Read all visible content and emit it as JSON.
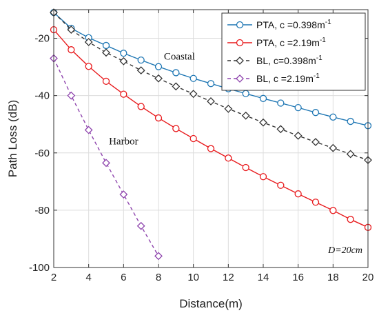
{
  "chart_data": {
    "type": "line",
    "xlabel": "Distance(m)",
    "ylabel": "Path Loss (dB)",
    "xlim": [
      2,
      20
    ],
    "ylim": [
      -100,
      -10
    ],
    "xticks": [
      2,
      4,
      6,
      8,
      10,
      12,
      14,
      16,
      18,
      20
    ],
    "yticks": [
      -100,
      -80,
      -60,
      -40,
      -20
    ],
    "grid": true,
    "legend_position": "top-right",
    "series": [
      {
        "name": "PTA, c =0.398m",
        "name_sup": "-1",
        "color": "#1f77b4",
        "line": "solid",
        "marker": "circle",
        "x": [
          2,
          3,
          4,
          5,
          6,
          7,
          8,
          9,
          10,
          11,
          12,
          13,
          14,
          15,
          16,
          17,
          18,
          19,
          20
        ],
        "values": [
          -11.0,
          -16.5,
          -19.8,
          -22.5,
          -25.2,
          -27.6,
          -29.9,
          -32.0,
          -34.0,
          -35.8,
          -37.6,
          -39.3,
          -41.0,
          -42.6,
          -44.2,
          -45.9,
          -47.5,
          -49.0,
          -50.5
        ]
      },
      {
        "name": "PTA, c =2.19m",
        "name_sup": "-1",
        "color": "#e8191c",
        "line": "solid",
        "marker": "circle",
        "x": [
          2,
          3,
          4,
          5,
          6,
          7,
          8,
          9,
          10,
          11,
          12,
          13,
          14,
          15,
          16,
          17,
          18,
          19,
          20
        ],
        "values": [
          -17.0,
          -24.0,
          -29.8,
          -35.0,
          -39.5,
          -43.8,
          -47.8,
          -51.5,
          -55.0,
          -58.5,
          -61.8,
          -65.1,
          -68.3,
          -71.3,
          -74.3,
          -77.2,
          -80.1,
          -83.2,
          -86.0
        ]
      },
      {
        "name": "BL, c=0.398m",
        "name_sup": "-1",
        "color": "#333333",
        "line": "dashed",
        "marker": "diamond",
        "x": [
          2,
          3,
          4,
          5,
          6,
          7,
          8,
          9,
          10,
          11,
          12,
          13,
          14,
          15,
          16,
          17,
          18,
          19,
          20
        ],
        "values": [
          -11.0,
          -17.0,
          -21.3,
          -25.0,
          -28.0,
          -31.2,
          -34.0,
          -36.8,
          -39.4,
          -42.0,
          -44.6,
          -47.0,
          -49.4,
          -51.7,
          -54.0,
          -56.2,
          -58.3,
          -60.4,
          -62.5
        ]
      },
      {
        "name": "BL, c =2.19m",
        "name_sup": "-1",
        "color": "#8e44ad",
        "line": "dashed",
        "marker": "diamond",
        "x": [
          2,
          3,
          4,
          5,
          6,
          7,
          8
        ],
        "values": [
          -27.0,
          -40.0,
          -52.0,
          -63.5,
          -74.5,
          -85.5,
          -96.0
        ]
      }
    ],
    "annotations": [
      {
        "text": "Coastal",
        "x": 9.2,
        "y": -27.5,
        "style": "serif"
      },
      {
        "text": "Harbor",
        "x": 6.0,
        "y": -57.0,
        "style": "serif"
      },
      {
        "text": "D=20cm",
        "x": 18.7,
        "y": -95.0,
        "style": "italic"
      }
    ]
  }
}
